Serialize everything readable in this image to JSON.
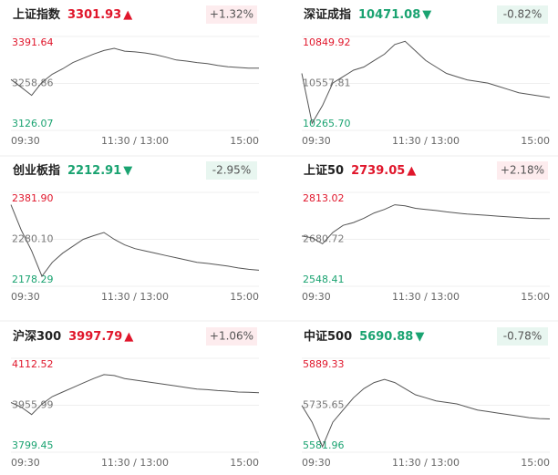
{
  "chart_data": [
    {
      "type": "line",
      "title": "上证指数",
      "price": "3301.93",
      "arrow": "▲",
      "change": "+1.32%",
      "color": "#e0162b",
      "badge_color": "#fdecee",
      "ylim": [
        3126.07,
        3391.64
      ],
      "yticks": [
        3126.07,
        3258.86,
        3391.64
      ],
      "xlim": [
        0,
        240
      ],
      "xticks": [
        {
          "value": 0,
          "label": "09:30"
        },
        {
          "value": 120,
          "label": "11:30 / 13:00"
        },
        {
          "value": 240,
          "label": "15:00"
        }
      ],
      "x": [
        0,
        10,
        20,
        30,
        40,
        50,
        60,
        70,
        80,
        90,
        100,
        110,
        120,
        130,
        140,
        150,
        160,
        170,
        180,
        190,
        200,
        210,
        220,
        230,
        240
      ],
      "values": [
        3270,
        3248,
        3225,
        3262,
        3285,
        3300,
        3318,
        3330,
        3342,
        3352,
        3358,
        3350,
        3348,
        3345,
        3340,
        3333,
        3325,
        3322,
        3318,
        3315,
        3310,
        3306,
        3304,
        3302,
        3302
      ]
    },
    {
      "type": "line",
      "title": "深证成指",
      "price": "10471.08",
      "arrow": "▼",
      "change": "-0.82%",
      "color": "#1aa371",
      "badge_color": "#e8f6f0",
      "ylim": [
        10265.7,
        10849.92
      ],
      "yticks": [
        {
          "value": 10265.7,
          "label": "10265.70"
        },
        10557.81,
        10849.92
      ],
      "xlim": [
        0,
        240
      ],
      "xticks": [
        {
          "value": 0,
          "label": "09:30"
        },
        {
          "value": 120,
          "label": "11:30 / 13:00"
        },
        {
          "value": 240,
          "label": "15:00"
        }
      ],
      "x": [
        0,
        10,
        20,
        30,
        40,
        50,
        60,
        70,
        80,
        90,
        100,
        110,
        120,
        130,
        140,
        150,
        160,
        170,
        180,
        190,
        200,
        210,
        220,
        230,
        240
      ],
      "values": [
        10620,
        10310,
        10420,
        10560,
        10600,
        10640,
        10660,
        10700,
        10740,
        10800,
        10820,
        10760,
        10700,
        10660,
        10620,
        10600,
        10580,
        10570,
        10560,
        10540,
        10520,
        10500,
        10490,
        10480,
        10470
      ]
    },
    {
      "type": "line",
      "title": "创业板指",
      "price": "2212.91",
      "arrow": "▼",
      "change": "-2.95%",
      "color": "#1aa371",
      "badge_color": "#e8f6f0",
      "ylim": [
        2178.29,
        2381.9
      ],
      "yticks": [
        2178.29,
        {
          "value": 2280.1,
          "label": "2280.10"
        },
        {
          "value": 2381.9,
          "label": "2381.90"
        }
      ],
      "xlim": [
        0,
        240
      ],
      "xticks": [
        {
          "value": 0,
          "label": "09:30"
        },
        {
          "value": 120,
          "label": "11:30 / 13:00"
        },
        {
          "value": 240,
          "label": "15:00"
        }
      ],
      "x": [
        0,
        10,
        20,
        30,
        40,
        50,
        60,
        70,
        80,
        90,
        100,
        110,
        120,
        130,
        140,
        150,
        160,
        170,
        180,
        190,
        200,
        210,
        220,
        230,
        240
      ],
      "values": [
        2355,
        2300,
        2255,
        2200,
        2230,
        2250,
        2265,
        2280,
        2288,
        2295,
        2280,
        2268,
        2260,
        2255,
        2250,
        2245,
        2240,
        2235,
        2230,
        2228,
        2225,
        2222,
        2218,
        2215,
        2213
      ]
    },
    {
      "type": "line",
      "title": "上证50",
      "price": "2739.05",
      "arrow": "▲",
      "change": "+2.18%",
      "color": "#e0162b",
      "badge_color": "#fdecee",
      "ylim": [
        2548.41,
        2813.02
      ],
      "yticks": [
        2548.41,
        2680.72,
        2813.02
      ],
      "xlim": [
        0,
        240
      ],
      "xticks": [
        {
          "value": 0,
          "label": "09:30"
        },
        {
          "value": 120,
          "label": "11:30 / 13:00"
        },
        {
          "value": 240,
          "label": "15:00"
        }
      ],
      "x": [
        0,
        10,
        20,
        30,
        40,
        50,
        60,
        70,
        80,
        90,
        100,
        110,
        120,
        130,
        140,
        150,
        160,
        170,
        180,
        190,
        200,
        210,
        220,
        230,
        240
      ],
      "values": [
        2690,
        2685,
        2668,
        2700,
        2720,
        2728,
        2740,
        2755,
        2765,
        2778,
        2775,
        2768,
        2765,
        2762,
        2758,
        2755,
        2752,
        2750,
        2748,
        2746,
        2744,
        2742,
        2740,
        2739,
        2739
      ]
    },
    {
      "type": "line",
      "title": "沪深300",
      "price": "3997.79",
      "arrow": "▲",
      "change": "+1.06%",
      "color": "#e0162b",
      "badge_color": "#fdecee",
      "ylim": [
        3799.45,
        4112.52
      ],
      "yticks": [
        3799.45,
        3955.99,
        4112.52
      ],
      "xlim": [
        0,
        240
      ],
      "xticks": [
        {
          "value": 0,
          "label": "09:30"
        },
        {
          "value": 120,
          "label": "11:30 / 13:00"
        },
        {
          "value": 240,
          "label": "15:00"
        }
      ],
      "x": [
        0,
        10,
        20,
        30,
        40,
        50,
        60,
        70,
        80,
        90,
        100,
        110,
        120,
        130,
        140,
        150,
        160,
        170,
        180,
        190,
        200,
        210,
        220,
        230,
        240
      ],
      "values": [
        3965,
        3950,
        3925,
        3960,
        3985,
        4000,
        4015,
        4030,
        4045,
        4058,
        4055,
        4045,
        4040,
        4035,
        4030,
        4025,
        4020,
        4015,
        4010,
        4008,
        4005,
        4003,
        4000,
        3999,
        3998
      ]
    },
    {
      "type": "line",
      "title": "中证500",
      "price": "5690.88",
      "arrow": "▼",
      "change": "-0.78%",
      "color": "#1aa371",
      "badge_color": "#e8f6f0",
      "ylim": [
        5581.96,
        5889.33
      ],
      "yticks": [
        5581.96,
        5735.65,
        5889.33
      ],
      "xlim": [
        0,
        240
      ],
      "xticks": [
        {
          "value": 0,
          "label": "09:30"
        },
        {
          "value": 120,
          "label": "11:30 / 13:00"
        },
        {
          "value": 240,
          "label": "15:00"
        }
      ],
      "x": [
        0,
        10,
        20,
        30,
        40,
        50,
        60,
        70,
        80,
        90,
        100,
        110,
        120,
        130,
        140,
        150,
        160,
        170,
        180,
        190,
        200,
        210,
        220,
        230,
        240
      ],
      "values": [
        5735,
        5680,
        5600,
        5680,
        5720,
        5760,
        5790,
        5810,
        5820,
        5810,
        5790,
        5770,
        5760,
        5750,
        5745,
        5740,
        5730,
        5720,
        5715,
        5710,
        5705,
        5700,
        5695,
        5692,
        5691
      ]
    }
  ]
}
